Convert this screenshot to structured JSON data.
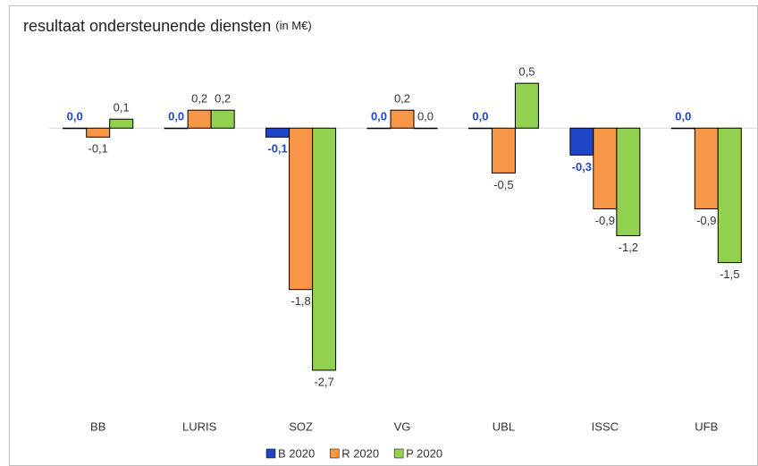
{
  "chart_data": {
    "type": "bar",
    "title": "resultaat ondersteunende diensten",
    "unit": "(in M€)",
    "categories": [
      "BB",
      "LURIS",
      "SOZ",
      "VG",
      "UBL",
      "ISSC",
      "UFB"
    ],
    "series": [
      {
        "name": "B 2020",
        "color": "#2046c8",
        "label_color": "#2046c8",
        "values": [
          0.0,
          0.0,
          -0.1,
          0.0,
          0.0,
          -0.3,
          0.0
        ],
        "value_labels": [
          "0,0",
          "0,0",
          "-0,1",
          "0,0",
          "0,0",
          "-0,3",
          "0,0"
        ]
      },
      {
        "name": "R 2020",
        "color": "#f79646",
        "label_color": "#333333",
        "values": [
          -0.1,
          0.2,
          -1.8,
          0.2,
          -0.5,
          -0.9,
          -0.9
        ],
        "value_labels": [
          "-0,1",
          "0,2",
          "-1,8",
          "0,2",
          "-0,5",
          "-0,9",
          "-0,9"
        ]
      },
      {
        "name": "P 2020",
        "color": "#92d050",
        "label_color": "#333333",
        "values": [
          0.1,
          0.2,
          -2.7,
          0.0,
          0.5,
          -1.2,
          -1.5
        ],
        "value_labels": [
          "0,1",
          "0,2",
          "-2,7",
          "0,0",
          "0,5",
          "-1,2",
          "-1,5"
        ]
      }
    ],
    "ylim": [
      -3.0,
      1.0
    ],
    "legend": "bottom"
  }
}
